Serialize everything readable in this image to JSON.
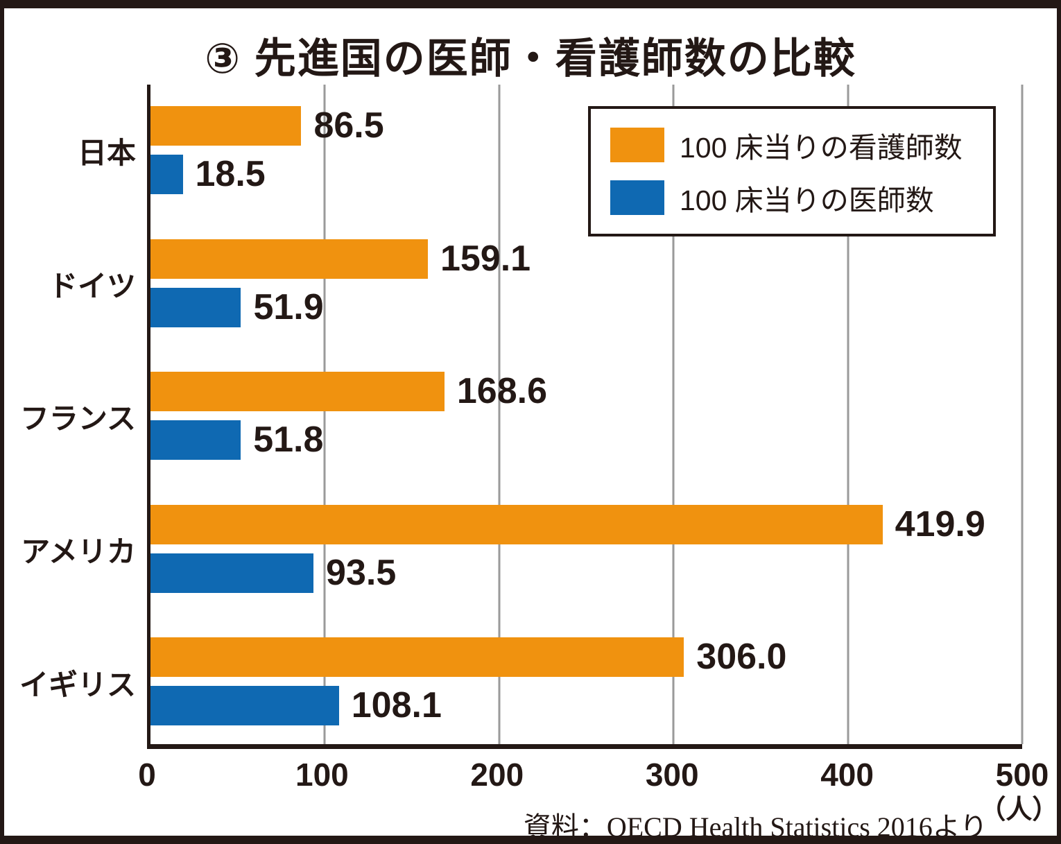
{
  "title": "③ 先進国の医師・看護師数の比較",
  "source": "資料：OECD Health Statistics 2016より",
  "unit_label": "（人）",
  "colors": {
    "nurses": "#F0920F",
    "doctors": "#0F69B2",
    "gridline": "#9A9A9A",
    "text": "#231815"
  },
  "axis": {
    "tick_labels": [
      "0",
      "100",
      "200",
      "300",
      "400",
      "500"
    ]
  },
  "chart_data": {
    "type": "bar",
    "orientation": "horizontal",
    "title": "③ 先進国の医師・看護師数の比較",
    "categories": [
      "日本",
      "ドイツ",
      "フランス",
      "アメリカ",
      "イギリス"
    ],
    "series": [
      {
        "name": "100 床当りの看護師数",
        "color": "#F0920F",
        "values": [
          86.5,
          159.1,
          168.6,
          419.9,
          306.0
        ],
        "labels": [
          "86.5",
          "159.1",
          "168.6",
          "419.9",
          "306.0"
        ]
      },
      {
        "name": "100 床当りの医師数",
        "color": "#0F69B2",
        "values": [
          18.5,
          51.9,
          51.8,
          93.5,
          108.1
        ],
        "labels": [
          "18.5",
          "51.9",
          "51.8",
          "93.5",
          "108.1"
        ]
      }
    ],
    "xlim": [
      0,
      500
    ],
    "xticks": [
      0,
      100,
      200,
      300,
      400,
      500
    ],
    "xlabel_unit": "（人）",
    "grid": true,
    "legend_position": "top-right",
    "value_labels": true
  }
}
